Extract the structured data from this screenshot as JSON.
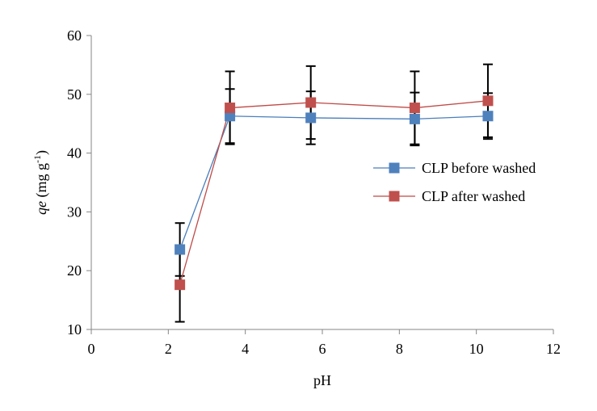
{
  "chart_data": {
    "type": "scatter",
    "title": "",
    "xlabel": "pH",
    "ylabel": {
      "italic": "qe",
      "unit_open": " (mg g",
      "unit_sup": "-1",
      "unit_close": ")"
    },
    "xlim": [
      0,
      12
    ],
    "ylim": [
      10,
      60
    ],
    "xticks": [
      0,
      2,
      4,
      6,
      8,
      10,
      12
    ],
    "yticks": [
      10,
      20,
      30,
      40,
      50,
      60
    ],
    "grid": false,
    "legend_position": "right",
    "series": [
      {
        "name": "CLP before washed",
        "color": "#4a7ebb",
        "marker_color": "#4f81bd",
        "marker": "square",
        "x": [
          2.3,
          3.6,
          5.7,
          8.4,
          10.3
        ],
        "y": [
          23.6,
          46.3,
          46.0,
          45.8,
          46.3
        ],
        "error": [
          4.5,
          4.6,
          4.5,
          4.5,
          3.9
        ]
      },
      {
        "name": "CLP after washed",
        "color": "#be4b48",
        "marker_color": "#c0504d",
        "marker": "square",
        "x": [
          2.3,
          3.6,
          5.7,
          8.4,
          10.3
        ],
        "y": [
          17.6,
          47.7,
          48.6,
          47.7,
          48.9
        ],
        "error": [
          6.3,
          6.2,
          6.2,
          6.2,
          6.2
        ]
      }
    ]
  }
}
